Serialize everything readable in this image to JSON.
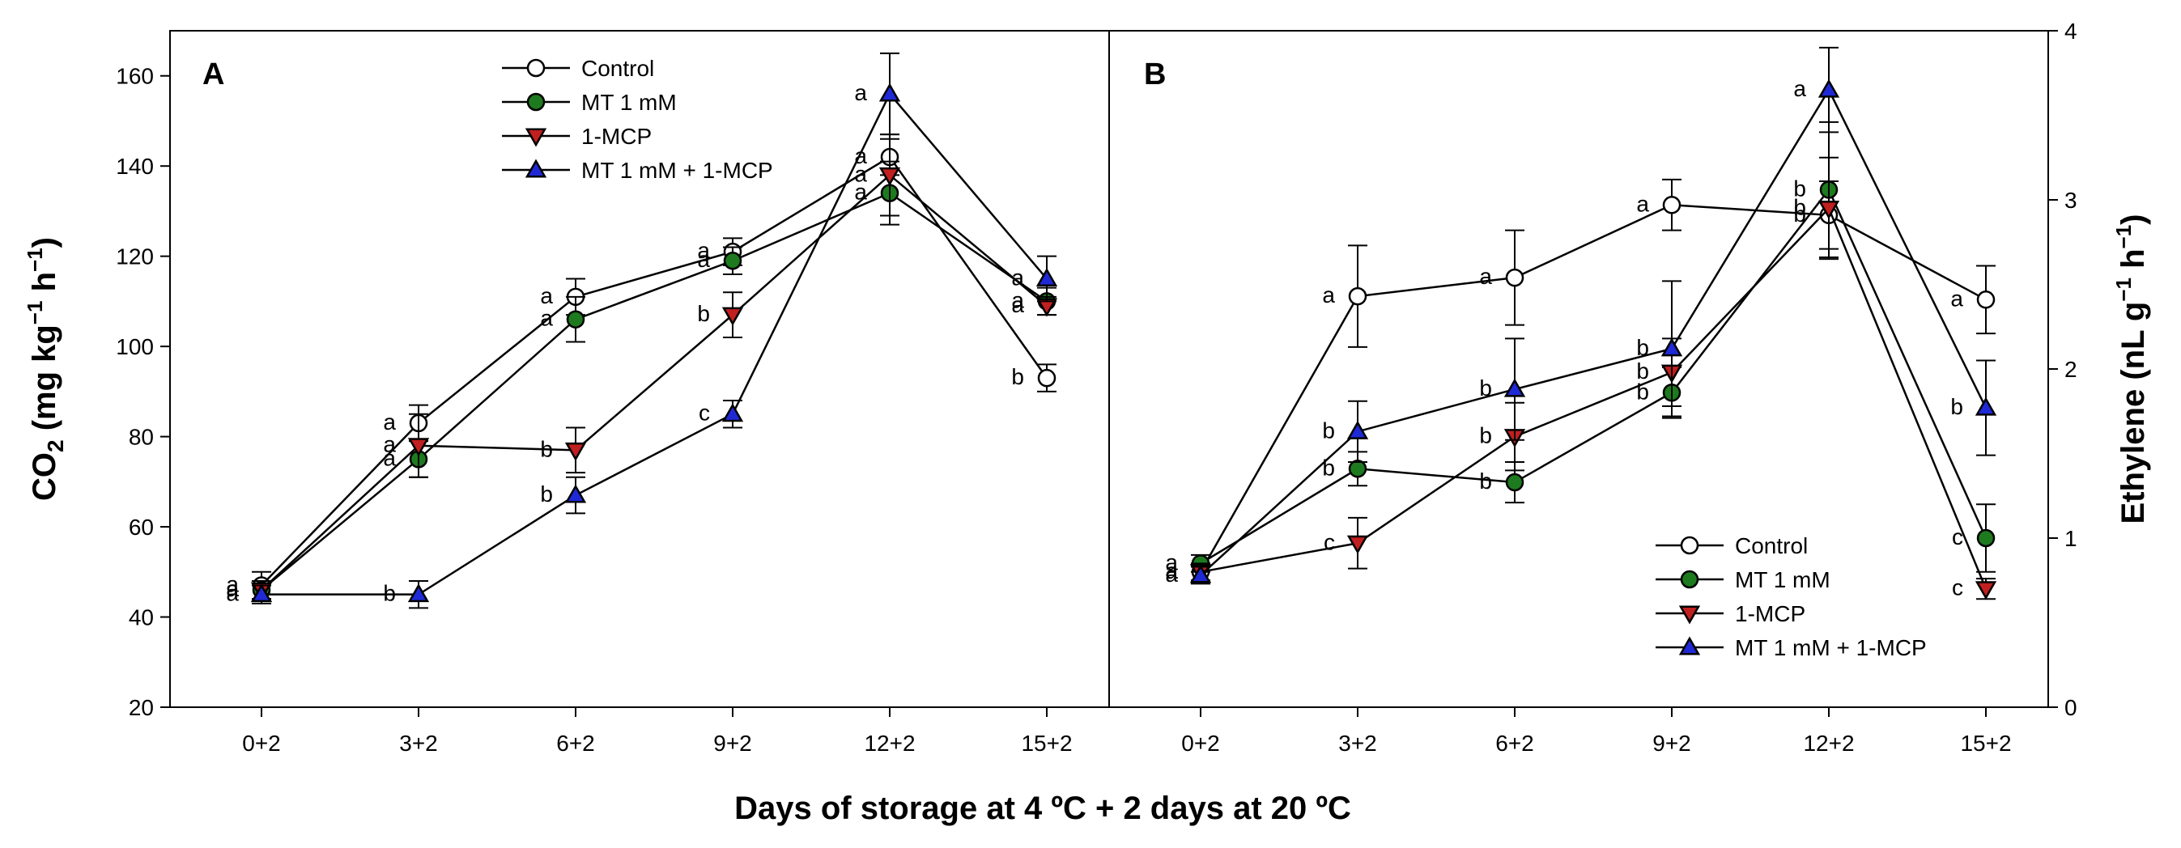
{
  "figure": {
    "shared_xlabel": "Days of storage at 4 ºC + 2 days at 20 ºC"
  },
  "colors": {
    "control": "#ffffff",
    "mt": "#1e7a1e",
    "mcp": "#c0201f",
    "mtmcp": "#1f2ad6",
    "stroke": "#000000"
  },
  "chart_data": [
    {
      "type": "line",
      "panel_label": "A",
      "title": "",
      "xlabel": "Days of storage at 4 ºC + 2 days at 20 ºC",
      "ylabel": "CO2 (mg kg−1 h−1)",
      "ylabel_parts": {
        "pre": "CO",
        "sub": "2",
        "mid1": " (mg kg",
        "sup1": "−1",
        "mid2": " h",
        "sup2": "−1",
        "post": ")"
      },
      "categories": [
        "0+2",
        "3+2",
        "6+2",
        "9+2",
        "12+2",
        "15+2"
      ],
      "ylim": [
        20,
        170
      ],
      "yticks": [
        "20",
        "40",
        "60",
        "80",
        "100",
        "120",
        "140",
        "160"
      ],
      "legend_position": "top-center",
      "series": [
        {
          "name": "Control",
          "key": "control",
          "marker": "circle",
          "values": [
            47,
            83,
            111,
            121,
            142,
            93
          ],
          "errors": [
            3,
            4,
            4,
            3,
            4,
            3
          ],
          "letters": [
            "a",
            "a",
            "a",
            "a",
            "a",
            "b"
          ]
        },
        {
          "name": "MT 1 mM",
          "key": "mt",
          "marker": "circle",
          "values": [
            46,
            75,
            106,
            119,
            134,
            110
          ],
          "errors": [
            2,
            4,
            5,
            3,
            7,
            3
          ],
          "letters": [
            "a",
            "a",
            "a",
            "a",
            "a",
            "a"
          ]
        },
        {
          "name": "1-MCP",
          "key": "mcp",
          "marker": "triangle-down",
          "values": [
            46,
            78,
            77,
            107,
            138,
            109
          ],
          "errors": [
            2,
            7,
            5,
            5,
            9,
            2
          ],
          "letters": [
            "a",
            "a",
            "b",
            "b",
            "a",
            "a"
          ]
        },
        {
          "name": "MT 1 mM + 1-MCP",
          "key": "mtmcp",
          "marker": "triangle-up",
          "values": [
            45,
            45,
            67,
            85,
            156,
            115
          ],
          "errors": [
            2,
            3,
            4,
            3,
            9,
            5
          ],
          "letters": [
            "a",
            "b",
            "b",
            "c",
            "a",
            "a"
          ]
        }
      ]
    },
    {
      "type": "line",
      "panel_label": "B",
      "title": "",
      "xlabel": "Days of storage at 4 ºC + 2 days at 20 ºC",
      "ylabel": "Ethylene (nL g−1 h−1)",
      "ylabel_parts": {
        "pre": "Ethylene",
        "sub": "",
        "mid1": " (nL g",
        "sup1": "−1",
        "mid2": " h",
        "sup2": "−1",
        "post": ")"
      },
      "categories": [
        "0+2",
        "3+2",
        "6+2",
        "9+2",
        "12+2",
        "15+2"
      ],
      "ylim": [
        0,
        4
      ],
      "yticks": [
        "0",
        "1",
        "2",
        "3",
        "4"
      ],
      "legend_position": "bottom-right",
      "series": [
        {
          "name": "Control",
          "key": "control",
          "marker": "circle",
          "values": [
            0.8,
            2.43,
            2.54,
            2.97,
            2.91,
            2.41
          ],
          "errors": [
            0.05,
            0.3,
            0.28,
            0.15,
            0.2,
            0.2
          ],
          "letters": [
            "a",
            "a",
            "a",
            "a",
            "b",
            "a"
          ]
        },
        {
          "name": "MT 1 mM",
          "key": "mt",
          "marker": "circle",
          "values": [
            0.85,
            1.41,
            1.33,
            1.86,
            3.06,
            1.0
          ],
          "errors": [
            0.05,
            0.1,
            0.12,
            0.15,
            0.4,
            0.2
          ],
          "letters": [
            "a",
            "b",
            "b",
            "b",
            "b",
            "c"
          ]
        },
        {
          "name": "1-MCP",
          "key": "mcp",
          "marker": "triangle-down",
          "values": [
            0.8,
            0.97,
            1.6,
            1.98,
            2.95,
            0.7
          ],
          "errors": [
            0.05,
            0.15,
            0.2,
            0.2,
            0.3,
            0.06
          ],
          "letters": [
            "a",
            "c",
            "b",
            "b",
            "b",
            "c"
          ]
        },
        {
          "name": "MT 1 mM + 1-MCP",
          "key": "mtmcp",
          "marker": "triangle-up",
          "values": [
            0.78,
            1.63,
            1.88,
            2.12,
            3.65,
            1.77
          ],
          "errors": [
            0.05,
            0.18,
            0.3,
            0.4,
            0.25,
            0.28
          ],
          "letters": [
            "a",
            "b",
            "b",
            "b",
            "a",
            "b"
          ]
        }
      ]
    }
  ]
}
